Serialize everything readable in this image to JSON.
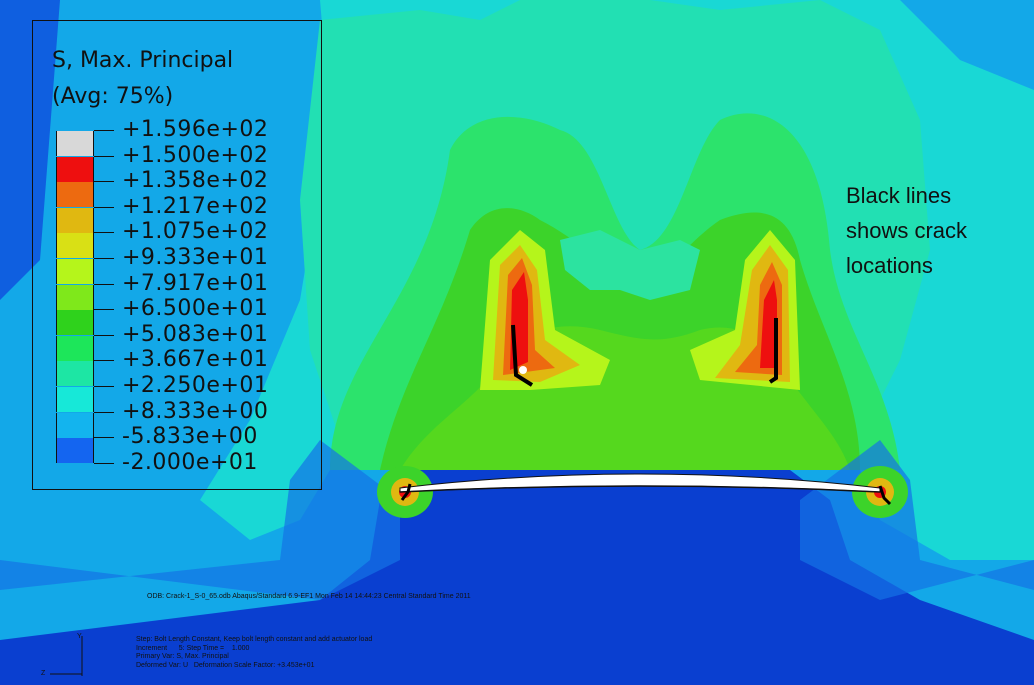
{
  "legend": {
    "title": "S, Max. Principal",
    "subtitle": "(Avg: 75%)",
    "levels": [
      {
        "label": "+1.596e+02",
        "color": "#d8d8d8"
      },
      {
        "label": "+1.500e+02",
        "color": "#ee0f0f"
      },
      {
        "label": "+1.358e+02",
        "color": "#ed6a10"
      },
      {
        "label": "+1.217e+02",
        "color": "#e0b811"
      },
      {
        "label": "+1.075e+02",
        "color": "#d9e015"
      },
      {
        "label": "+9.333e+01",
        "color": "#b5f51b"
      },
      {
        "label": "+7.917e+01",
        "color": "#7fe81b"
      },
      {
        "label": "+6.500e+01",
        "color": "#2fd21c"
      },
      {
        "label": "+5.083e+01",
        "color": "#1de65a"
      },
      {
        "label": "+3.667e+01",
        "color": "#1de6a4"
      },
      {
        "label": "+2.250e+01",
        "color": "#17e8d8"
      },
      {
        "label": "+8.333e+00",
        "color": "#13b4ee"
      },
      {
        "label": "-5.833e+00",
        "color": "#1465f0"
      },
      {
        "label": "-2.000e+01",
        "color": "#0d3ad8"
      }
    ]
  },
  "annotation": "Black lines\nshows crack\nlocations",
  "info": {
    "odb_line": "ODB: Crack-1_S-0_65.odb    Abaqus/Standard 6.9-EF1    Mon Feb 14 14:44:23 Central Standard Time 2011",
    "step_line": "Step: Bolt Length Constant, Keep bolt length constant and add actuator load",
    "increment_line": "Increment      5: Step Time =    1.000",
    "primary_var": "Primary Var: S, Max. Principal",
    "deformed_var": "Deformed Var: U   Deformation Scale Factor: +3.453e+01"
  },
  "triad": {
    "y": "Y",
    "z": "Z"
  }
}
